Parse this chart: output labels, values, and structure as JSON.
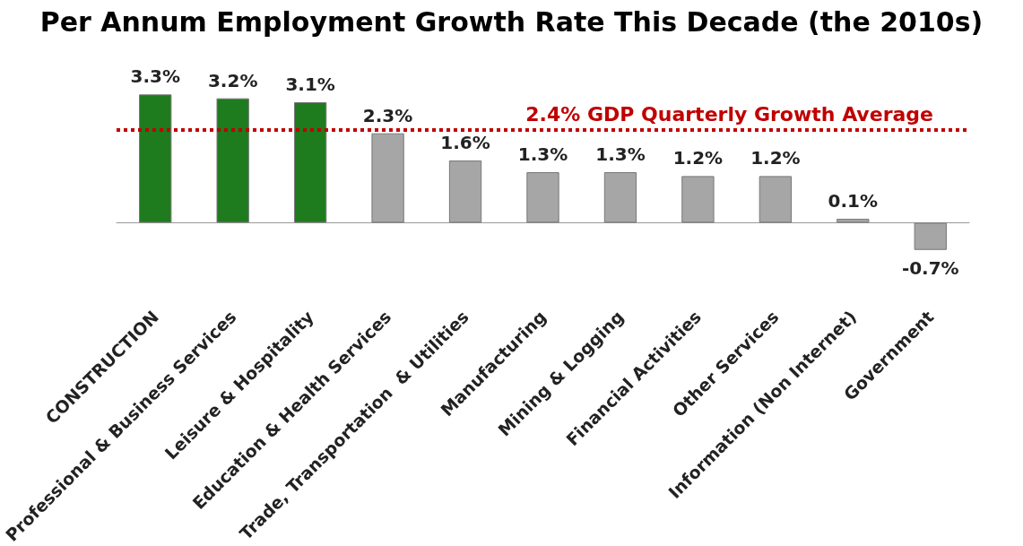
{
  "chart_data": {
    "type": "bar",
    "title": "Per Annum Employment Growth Rate This Decade (the 2010s)",
    "categories": [
      "CONSTRUCTION",
      "Professional & Business Services",
      "Leisure & Hospitality",
      "Education & Health Services",
      "Trade, Transportation  & Utilities",
      "Manufacturing",
      "Mining & Logging",
      "Financial Activities",
      "Other Services",
      "Information (Non Internet)",
      "Government"
    ],
    "values": [
      3.3,
      3.2,
      3.1,
      2.3,
      1.6,
      1.3,
      1.3,
      1.2,
      1.2,
      0.1,
      -0.7
    ],
    "colors": [
      "#1e7b1e",
      "#1e7b1e",
      "#1e7b1e",
      "#a6a6a6",
      "#a6a6a6",
      "#a6a6a6",
      "#a6a6a6",
      "#a6a6a6",
      "#a6a6a6",
      "#a6a6a6",
      "#a6a6a6"
    ],
    "value_labels": [
      "3.3%",
      "3.2%",
      "3.1%",
      "2.3%",
      "1.6%",
      "1.3%",
      "1.3%",
      "1.2%",
      "1.2%",
      "0.1%",
      "-0.7%"
    ],
    "ref_lines": [
      {
        "axis": "y",
        "value": 2.4,
        "label": "2.4% GDP Quarterly Growth Average",
        "color": "#c00000",
        "line_style": "dotted"
      }
    ],
    "grid": false
  }
}
